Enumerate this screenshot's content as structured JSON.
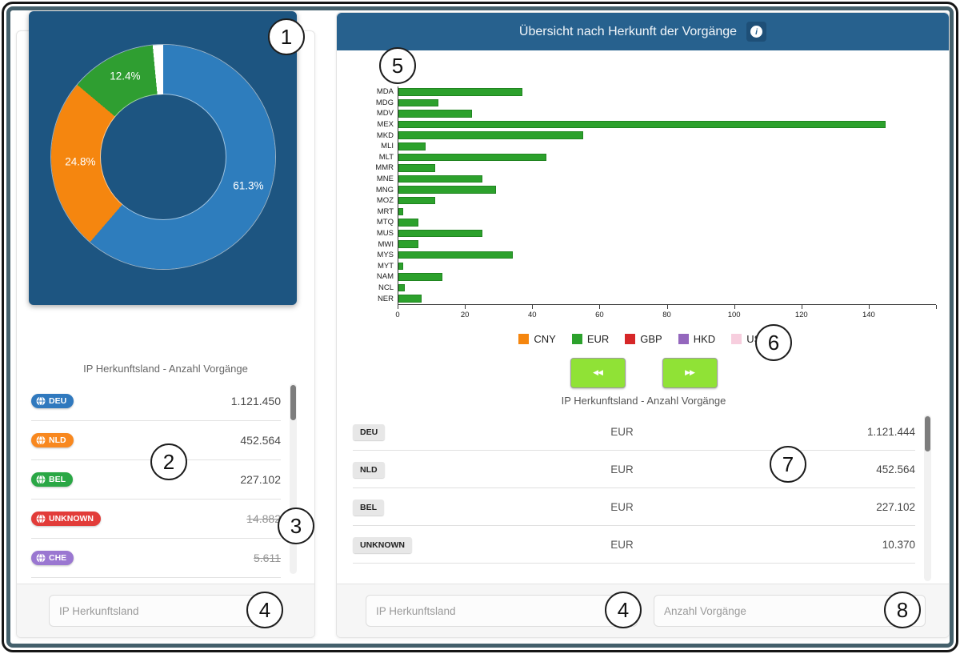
{
  "left_panel": {
    "list_title": "IP Herkunftsland - Anzahl Vorgänge",
    "rows": [
      {
        "code": "DEU",
        "badge_color": "#3079be",
        "value": "1.121.450",
        "struck": false
      },
      {
        "code": "NLD",
        "badge_color": "#f8881f",
        "value": "452.564",
        "struck": false
      },
      {
        "code": "BEL",
        "badge_color": "#2aa745",
        "value": "227.102",
        "struck": false
      },
      {
        "code": "UNKNOWN",
        "badge_color": "#e23c39",
        "value": "14.882",
        "struck": true
      },
      {
        "code": "CHE",
        "badge_color": "#9a77d1",
        "value": "5.611",
        "struck": true
      }
    ],
    "filter_placeholder": "IP Herkunftsland"
  },
  "right_panel": {
    "header_title": "Übersicht nach Herkunft der Vorgänge",
    "info_glyph": "i",
    "pager_prev": "◀◀",
    "pager_next": "▶▶",
    "caption": "IP Herkunftsland - Anzahl Vorgänge",
    "table_rows": [
      {
        "code": "DEU",
        "currency": "EUR",
        "value": "1.121.444"
      },
      {
        "code": "NLD",
        "currency": "EUR",
        "value": "452.564"
      },
      {
        "code": "BEL",
        "currency": "EUR",
        "value": "227.102"
      },
      {
        "code": "UNKNOWN",
        "currency": "EUR",
        "value": "10.370"
      }
    ],
    "filter_country_placeholder": "IP Herkunftsland",
    "filter_count_placeholder": "Anzahl Vorgänge"
  },
  "annotations": {
    "n1": "1",
    "n2": "2",
    "n3": "3",
    "n4a": "4",
    "n4b": "4",
    "n5": "5",
    "n6": "6",
    "n7": "7",
    "n8": "8"
  },
  "chart_data": [
    {
      "type": "pie",
      "subtype": "donut",
      "labels": [
        "61.3%",
        "24.8%",
        "12.4%"
      ],
      "values": [
        61.3,
        24.8,
        12.4
      ],
      "colors": [
        "#2e7dbd",
        "#f5860f",
        "#2f9e31"
      ],
      "remainder_pct": 1.5,
      "remainder_color": "#ffffff",
      "background": "#1d5581",
      "legend_position": "none"
    },
    {
      "type": "bar",
      "orientation": "horizontal",
      "categories": [
        "MDA",
        "MDG",
        "MDV",
        "MEX",
        "MKD",
        "MLI",
        "MLT",
        "MMR",
        "MNE",
        "MNG",
        "MOZ",
        "MRT",
        "MTQ",
        "MUS",
        "MWI",
        "MYS",
        "MYT",
        "NAM",
        "NCL",
        "NER"
      ],
      "values": [
        37,
        12,
        22,
        145,
        55,
        8,
        44,
        11,
        25,
        29,
        11,
        1.5,
        6,
        25,
        6,
        34,
        1.5,
        13,
        2,
        7
      ],
      "series_name": "EUR",
      "bar_color": "#2ca12c",
      "xlabel": "",
      "ylabel": "",
      "xlim": [
        0,
        160
      ],
      "xticks": [
        0,
        20,
        40,
        60,
        80,
        100,
        120,
        140
      ],
      "grid": false,
      "legend_position": "bottom",
      "legend": [
        {
          "label": "CNY",
          "color": "#f5860f"
        },
        {
          "label": "EUR",
          "color": "#2ca12c"
        },
        {
          "label": "GBP",
          "color": "#d62728"
        },
        {
          "label": "HKD",
          "color": "#9467bd"
        },
        {
          "label": "USD",
          "color": "#f7cede",
          "pattern": "dots"
        }
      ]
    }
  ]
}
